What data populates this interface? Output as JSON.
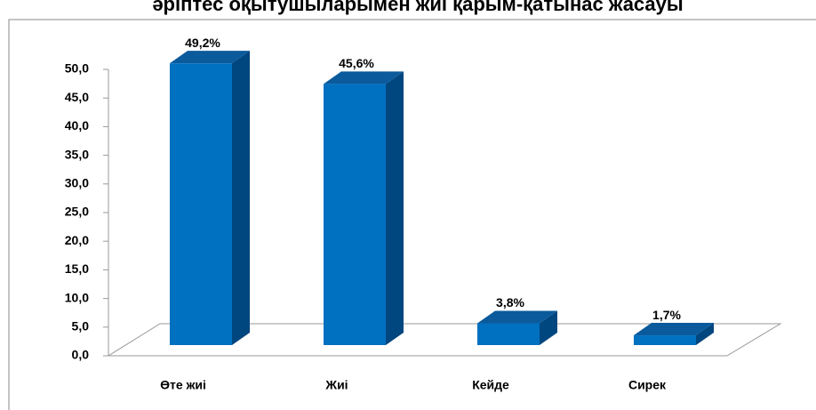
{
  "chart_data": {
    "type": "bar3d",
    "title": "әріптес оқытушыларымен жиі қарым-қатынас жасауы",
    "categories": [
      "Өте жиі",
      "Жиі",
      "Кейде",
      "Сирек"
    ],
    "values": [
      49.2,
      45.6,
      3.8,
      1.7
    ],
    "value_labels": [
      "49,2%",
      "45,6%",
      "3,8%",
      "1,7%"
    ],
    "color": "#0070c0",
    "ylim": [
      0,
      50
    ],
    "yticks": [
      {
        "value": 0,
        "label": "0,0"
      },
      {
        "value": 5,
        "label": "5,0"
      },
      {
        "value": 10,
        "label": "10,0"
      },
      {
        "value": 15,
        "label": "15,0"
      },
      {
        "value": 20,
        "label": "20,0"
      },
      {
        "value": 25,
        "label": "25,0"
      },
      {
        "value": 30,
        "label": "30,0"
      },
      {
        "value": 35,
        "label": "35,0"
      },
      {
        "value": 40,
        "label": "40,0"
      },
      {
        "value": 45,
        "label": "45,0"
      },
      {
        "value": 50,
        "label": "50,0"
      }
    ],
    "grid": false
  }
}
